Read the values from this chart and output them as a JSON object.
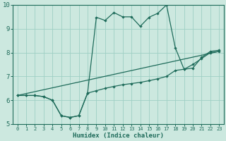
{
  "xlabel": "Humidex (Indice chaleur)",
  "bg_color": "#cce8df",
  "grid_color": "#9ecfc4",
  "line_color": "#1e6b5a",
  "xlim": [
    -0.5,
    23.5
  ],
  "ylim": [
    5,
    10
  ],
  "xticks": [
    0,
    1,
    2,
    3,
    4,
    5,
    6,
    7,
    8,
    9,
    10,
    11,
    12,
    13,
    14,
    15,
    16,
    17,
    18,
    19,
    20,
    21,
    22,
    23
  ],
  "yticks": [
    5,
    6,
    7,
    8,
    9,
    10
  ],
  "curve1_x": [
    0,
    1,
    2,
    3,
    4,
    5,
    6,
    7,
    8,
    9,
    10,
    11,
    12,
    13,
    14,
    15,
    16,
    17,
    18,
    19,
    20,
    21,
    22,
    23
  ],
  "curve1_y": [
    6.2,
    6.2,
    6.2,
    6.15,
    6.0,
    5.35,
    5.28,
    5.35,
    6.3,
    9.48,
    9.35,
    9.68,
    9.5,
    9.5,
    9.1,
    9.48,
    9.65,
    10.0,
    8.2,
    7.3,
    7.35,
    7.8,
    8.05,
    8.1
  ],
  "curve2_x": [
    0,
    1,
    2,
    3,
    4,
    5,
    6,
    7,
    8,
    9,
    10,
    11,
    12,
    13,
    14,
    15,
    16,
    17,
    18,
    19,
    20,
    21,
    22,
    23
  ],
  "curve2_y": [
    6.2,
    6.2,
    6.2,
    6.15,
    6.0,
    5.35,
    5.28,
    5.35,
    6.3,
    6.4,
    6.5,
    6.58,
    6.65,
    6.7,
    6.75,
    6.82,
    6.9,
    7.0,
    7.25,
    7.3,
    7.5,
    7.75,
    8.0,
    8.05
  ],
  "line3_x": [
    0,
    23
  ],
  "line3_y": [
    6.2,
    8.05
  ]
}
